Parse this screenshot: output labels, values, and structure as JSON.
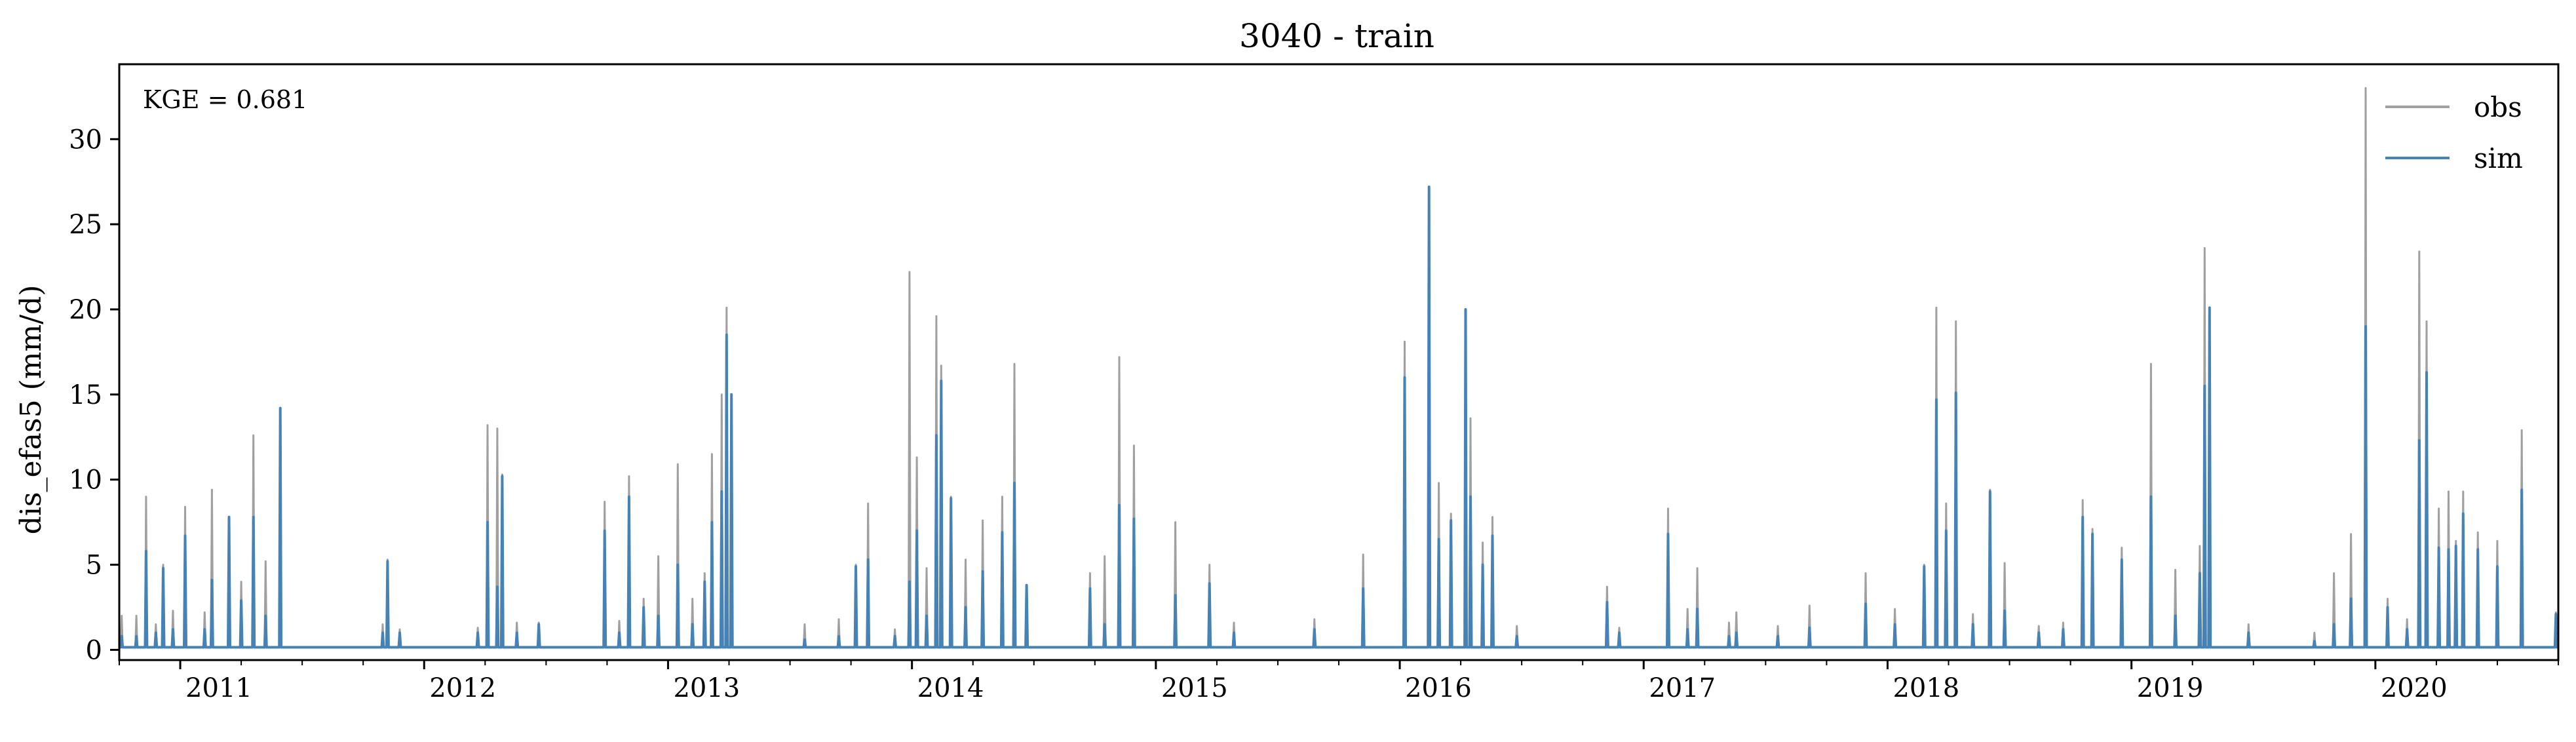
{
  "chart_data": {
    "type": "line",
    "title": "3040 - train",
    "xlabel": "",
    "ylabel": "dis_efas5 (mm/d)",
    "annotation": "KGE = 0.681",
    "legend_position": "top-right",
    "grid": false,
    "xlim": [
      2010.75,
      2020.75
    ],
    "ylim": [
      -0.6,
      34.4
    ],
    "yticks": [
      0,
      5,
      10,
      15,
      20,
      25,
      30
    ],
    "ytick_labels": [
      "0",
      "5",
      "10",
      "15",
      "20",
      "25",
      "30"
    ],
    "xticks": [
      2011,
      2012,
      2013,
      2014,
      2015,
      2016,
      2017,
      2018,
      2019,
      2020
    ],
    "xtick_labels": [
      "2011",
      "2012",
      "2013",
      "2014",
      "2015",
      "2016",
      "2017",
      "2018",
      "2019",
      "2020"
    ],
    "baseline": 0.15,
    "series": [
      {
        "name": "obs",
        "color": "#a0a0a0",
        "peaks": [
          [
            2010.76,
            2.0
          ],
          [
            2010.82,
            2.0
          ],
          [
            2010.86,
            9.0
          ],
          [
            2010.9,
            1.5
          ],
          [
            2010.93,
            5.0
          ],
          [
            2010.97,
            2.3
          ],
          [
            2011.02,
            8.4
          ],
          [
            2011.1,
            2.2
          ],
          [
            2011.13,
            9.4
          ],
          [
            2011.2,
            7.6
          ],
          [
            2011.25,
            4.0
          ],
          [
            2011.3,
            12.6
          ],
          [
            2011.35,
            5.2
          ],
          [
            2011.41,
            14.2
          ],
          [
            2011.83,
            1.5
          ],
          [
            2011.85,
            5.3
          ],
          [
            2011.9,
            1.2
          ],
          [
            2012.22,
            1.3
          ],
          [
            2012.26,
            13.2
          ],
          [
            2012.3,
            13.0
          ],
          [
            2012.32,
            10.3
          ],
          [
            2012.38,
            1.6
          ],
          [
            2012.47,
            1.6
          ],
          [
            2012.74,
            8.7
          ],
          [
            2012.8,
            1.7
          ],
          [
            2012.84,
            10.2
          ],
          [
            2012.9,
            3.0
          ],
          [
            2012.96,
            5.5
          ],
          [
            2013.04,
            10.9
          ],
          [
            2013.1,
            3.0
          ],
          [
            2013.15,
            4.5
          ],
          [
            2013.18,
            11.5
          ],
          [
            2013.22,
            15.0
          ],
          [
            2013.24,
            20.1
          ],
          [
            2013.26,
            12.5
          ],
          [
            2013.56,
            1.5
          ],
          [
            2013.7,
            1.8
          ],
          [
            2013.77,
            5.0
          ],
          [
            2013.82,
            8.6
          ],
          [
            2013.93,
            1.2
          ],
          [
            2013.99,
            22.2
          ],
          [
            2014.02,
            11.3
          ],
          [
            2014.06,
            4.8
          ],
          [
            2014.1,
            19.6
          ],
          [
            2014.12,
            16.7
          ],
          [
            2014.16,
            9.0
          ],
          [
            2014.22,
            5.3
          ],
          [
            2014.29,
            7.6
          ],
          [
            2014.37,
            9.0
          ],
          [
            2014.42,
            16.8
          ],
          [
            2014.47,
            3.8
          ],
          [
            2014.73,
            4.5
          ],
          [
            2014.79,
            5.5
          ],
          [
            2014.85,
            17.2
          ],
          [
            2014.91,
            12.0
          ],
          [
            2015.08,
            7.5
          ],
          [
            2015.22,
            5.0
          ],
          [
            2015.32,
            1.6
          ],
          [
            2015.65,
            1.8
          ],
          [
            2015.85,
            5.6
          ],
          [
            2016.02,
            18.1
          ],
          [
            2016.12,
            27.2
          ],
          [
            2016.16,
            9.8
          ],
          [
            2016.21,
            8.0
          ],
          [
            2016.27,
            20.0
          ],
          [
            2016.29,
            13.6
          ],
          [
            2016.34,
            6.3
          ],
          [
            2016.38,
            7.8
          ],
          [
            2016.48,
            1.4
          ],
          [
            2016.85,
            3.7
          ],
          [
            2016.9,
            1.3
          ],
          [
            2017.1,
            8.3
          ],
          [
            2017.18,
            2.4
          ],
          [
            2017.22,
            4.8
          ],
          [
            2017.35,
            1.6
          ],
          [
            2017.38,
            2.2
          ],
          [
            2017.55,
            1.4
          ],
          [
            2017.68,
            2.6
          ],
          [
            2017.91,
            4.5
          ],
          [
            2018.03,
            2.4
          ],
          [
            2018.15,
            5.0
          ],
          [
            2018.2,
            20.1
          ],
          [
            2018.24,
            8.6
          ],
          [
            2018.28,
            19.3
          ],
          [
            2018.35,
            2.1
          ],
          [
            2018.42,
            9.4
          ],
          [
            2018.48,
            5.1
          ],
          [
            2018.62,
            1.4
          ],
          [
            2018.72,
            1.6
          ],
          [
            2018.8,
            8.8
          ],
          [
            2018.84,
            7.1
          ],
          [
            2018.96,
            6.0
          ],
          [
            2019.08,
            16.8
          ],
          [
            2019.18,
            4.7
          ],
          [
            2019.28,
            6.1
          ],
          [
            2019.3,
            23.6
          ],
          [
            2019.32,
            20.0
          ],
          [
            2019.48,
            1.5
          ],
          [
            2019.75,
            1.0
          ],
          [
            2019.83,
            4.5
          ],
          [
            2019.9,
            6.8
          ],
          [
            2019.96,
            33.0
          ],
          [
            2020.05,
            3.0
          ],
          [
            2020.13,
            1.8
          ],
          [
            2020.18,
            23.4
          ],
          [
            2020.21,
            19.3
          ],
          [
            2020.26,
            8.3
          ],
          [
            2020.3,
            9.3
          ],
          [
            2020.33,
            6.4
          ],
          [
            2020.36,
            9.3
          ],
          [
            2020.42,
            6.9
          ],
          [
            2020.5,
            6.4
          ],
          [
            2020.6,
            12.9
          ],
          [
            2020.74,
            2.2
          ]
        ]
      },
      {
        "name": "sim",
        "color": "#4682b4",
        "peaks": [
          [
            2010.76,
            0.8
          ],
          [
            2010.82,
            0.8
          ],
          [
            2010.86,
            5.8
          ],
          [
            2010.9,
            1.0
          ],
          [
            2010.93,
            4.8
          ],
          [
            2010.97,
            1.2
          ],
          [
            2011.02,
            6.7
          ],
          [
            2011.1,
            1.2
          ],
          [
            2011.13,
            4.1
          ],
          [
            2011.2,
            7.8
          ],
          [
            2011.25,
            2.9
          ],
          [
            2011.3,
            7.8
          ],
          [
            2011.35,
            2.0
          ],
          [
            2011.41,
            14.2
          ],
          [
            2011.83,
            1.0
          ],
          [
            2011.85,
            5.2
          ],
          [
            2011.9,
            1.0
          ],
          [
            2012.22,
            1.0
          ],
          [
            2012.26,
            7.5
          ],
          [
            2012.3,
            3.7
          ],
          [
            2012.32,
            10.2
          ],
          [
            2012.38,
            1.0
          ],
          [
            2012.47,
            1.5
          ],
          [
            2012.74,
            7.0
          ],
          [
            2012.8,
            1.0
          ],
          [
            2012.84,
            9.0
          ],
          [
            2012.9,
            2.5
          ],
          [
            2012.96,
            2.0
          ],
          [
            2013.04,
            5.0
          ],
          [
            2013.1,
            1.5
          ],
          [
            2013.15,
            4.0
          ],
          [
            2013.18,
            7.5
          ],
          [
            2013.22,
            9.3
          ],
          [
            2013.24,
            18.5
          ],
          [
            2013.26,
            15.0
          ],
          [
            2013.56,
            0.6
          ],
          [
            2013.7,
            0.8
          ],
          [
            2013.77,
            4.9
          ],
          [
            2013.82,
            5.3
          ],
          [
            2013.93,
            0.8
          ],
          [
            2013.99,
            4.0
          ],
          [
            2014.02,
            7.0
          ],
          [
            2014.06,
            2.0
          ],
          [
            2014.1,
            12.6
          ],
          [
            2014.12,
            15.8
          ],
          [
            2014.16,
            8.9
          ],
          [
            2014.22,
            2.5
          ],
          [
            2014.29,
            4.6
          ],
          [
            2014.37,
            6.9
          ],
          [
            2014.42,
            9.8
          ],
          [
            2014.47,
            3.8
          ],
          [
            2014.73,
            3.6
          ],
          [
            2014.79,
            1.5
          ],
          [
            2014.85,
            8.5
          ],
          [
            2014.91,
            7.7
          ],
          [
            2015.08,
            3.2
          ],
          [
            2015.22,
            3.9
          ],
          [
            2015.32,
            1.0
          ],
          [
            2015.65,
            1.2
          ],
          [
            2015.85,
            3.6
          ],
          [
            2016.02,
            16.0
          ],
          [
            2016.12,
            27.2
          ],
          [
            2016.16,
            6.5
          ],
          [
            2016.21,
            7.6
          ],
          [
            2016.27,
            20.0
          ],
          [
            2016.29,
            9.0
          ],
          [
            2016.34,
            5.0
          ],
          [
            2016.38,
            6.7
          ],
          [
            2016.48,
            0.8
          ],
          [
            2016.85,
            2.8
          ],
          [
            2016.9,
            1.0
          ],
          [
            2017.1,
            6.8
          ],
          [
            2017.18,
            1.2
          ],
          [
            2017.22,
            2.4
          ],
          [
            2017.35,
            0.8
          ],
          [
            2017.38,
            1.0
          ],
          [
            2017.55,
            0.8
          ],
          [
            2017.68,
            1.3
          ],
          [
            2017.91,
            2.7
          ],
          [
            2018.03,
            1.5
          ],
          [
            2018.15,
            4.9
          ],
          [
            2018.2,
            14.7
          ],
          [
            2018.24,
            7.0
          ],
          [
            2018.28,
            15.1
          ],
          [
            2018.35,
            1.5
          ],
          [
            2018.42,
            9.3
          ],
          [
            2018.48,
            2.3
          ],
          [
            2018.62,
            1.0
          ],
          [
            2018.72,
            1.2
          ],
          [
            2018.8,
            7.8
          ],
          [
            2018.84,
            6.8
          ],
          [
            2018.96,
            5.3
          ],
          [
            2019.08,
            9.0
          ],
          [
            2019.18,
            2.0
          ],
          [
            2019.28,
            4.5
          ],
          [
            2019.3,
            15.5
          ],
          [
            2019.32,
            20.1
          ],
          [
            2019.48,
            1.0
          ],
          [
            2019.75,
            0.5
          ],
          [
            2019.83,
            1.5
          ],
          [
            2019.9,
            3.0
          ],
          [
            2019.96,
            19.0
          ],
          [
            2020.05,
            2.5
          ],
          [
            2020.13,
            1.2
          ],
          [
            2020.18,
            12.3
          ],
          [
            2020.21,
            16.3
          ],
          [
            2020.26,
            6.0
          ],
          [
            2020.3,
            5.9
          ],
          [
            2020.33,
            6.1
          ],
          [
            2020.36,
            8.0
          ],
          [
            2020.42,
            5.9
          ],
          [
            2020.5,
            4.9
          ],
          [
            2020.6,
            9.4
          ],
          [
            2020.74,
            2.1
          ]
        ]
      }
    ]
  }
}
